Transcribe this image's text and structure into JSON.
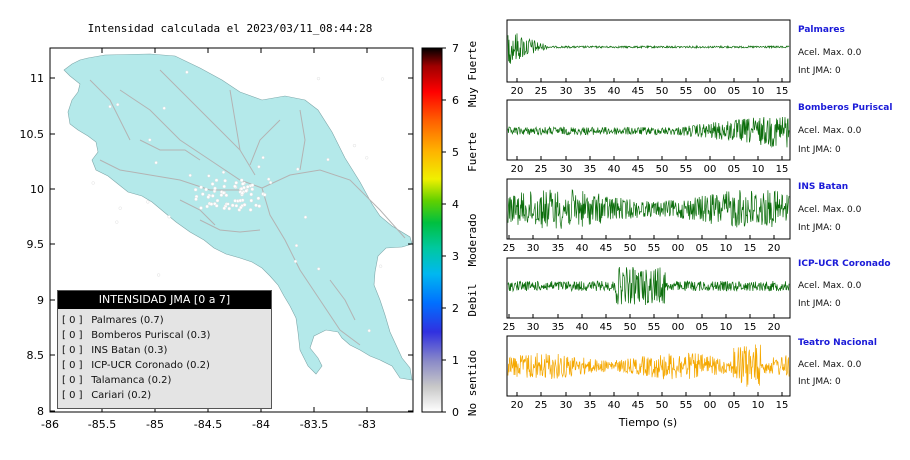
{
  "map": {
    "title": "Intensidad calculada el 2023/03/11_08:44:28",
    "x_ticks": [
      "-86",
      "-85.5",
      "-85",
      "-84.5",
      "-84",
      "-83.5",
      "-83"
    ],
    "y_ticks": [
      "11",
      "10.5",
      "10",
      "9.5",
      "9",
      "8.5",
      "8"
    ],
    "land_color": "#b4e9ea",
    "road_color": "#b3b3b3"
  },
  "colorbar": {
    "ticks": [
      "0",
      "1",
      "2",
      "3",
      "4",
      "5",
      "6",
      "7"
    ],
    "labels": [
      "No sentido",
      "Debil",
      "Moderado",
      "Fuerte",
      "Muy Fuerte"
    ]
  },
  "legend": {
    "title": "INTENSIDAD JMA [0 a 7]",
    "rows": [
      {
        "bracket": "[ 0 ]",
        "label": "Palmares (0.7)"
      },
      {
        "bracket": "[ 0 ]",
        "label": "Bomberos Puriscal (0.3)"
      },
      {
        "bracket": "[ 0 ]",
        "label": "INS Batan (0.3)"
      },
      {
        "bracket": "[ 0 ]",
        "label": "ICP-UCR Coronado (0.2)"
      },
      {
        "bracket": "[ 0 ]",
        "label": "Talamanca (0.2)"
      },
      {
        "bracket": "[ 0 ]",
        "label": "Cariari (0.2)"
      }
    ]
  },
  "stations": [
    {
      "name": "Palmares",
      "accel": "Acel. Max. 0.0",
      "jma": "Int JMA: 0",
      "color": "#0c6e0c",
      "ticks": [
        "20",
        "25",
        "30",
        "35",
        "40",
        "45",
        "50",
        "55",
        "00",
        "05",
        "10",
        "15"
      ]
    },
    {
      "name": "Bomberos Puriscal",
      "accel": "Acel. Max. 0.0",
      "jma": "Int JMA: 0",
      "color": "#0c6e0c",
      "ticks": [
        "20",
        "25",
        "30",
        "35",
        "40",
        "45",
        "50",
        "55",
        "00",
        "05",
        "10",
        "15"
      ]
    },
    {
      "name": "INS Batan",
      "accel": "Acel. Max. 0.0",
      "jma": "Int JMA: 0",
      "color": "#0c6e0c",
      "ticks": [
        "25",
        "30",
        "35",
        "40",
        "45",
        "50",
        "55",
        "00",
        "05",
        "10",
        "15",
        "20"
      ]
    },
    {
      "name": "ICP-UCR Coronado",
      "accel": "Acel. Max. 0.0",
      "jma": "Int JMA: 0",
      "color": "#0c6e0c",
      "ticks": [
        "25",
        "30",
        "35",
        "40",
        "45",
        "50",
        "55",
        "00",
        "05",
        "10",
        "15",
        "20"
      ]
    },
    {
      "name": "Teatro Nacional",
      "accel": "Acel. Max. 0.0",
      "jma": "Int JMA: 0",
      "color": "#f5a800",
      "ticks": [
        "20",
        "25",
        "30",
        "35",
        "40",
        "45",
        "50",
        "55",
        "00",
        "05",
        "10",
        "15"
      ]
    }
  ],
  "time_label": "Tiempo (s)",
  "chart_data": {
    "type": "heatmap",
    "title": "Intensidad calculada el 2023/03/11_08:44:28",
    "x_range": [
      -86,
      -82.6
    ],
    "y_range": [
      8,
      11.3
    ],
    "colorbar_range": [
      0,
      7
    ],
    "station_intensities": [
      {
        "name": "Palmares",
        "value": 0.7
      },
      {
        "name": "Bomberos Puriscal",
        "value": 0.3
      },
      {
        "name": "INS Batan",
        "value": 0.3
      },
      {
        "name": "ICP-UCR Coronado",
        "value": 0.2
      },
      {
        "name": "Talamanca",
        "value": 0.2
      },
      {
        "name": "Cariari",
        "value": 0.2
      }
    ],
    "waveform_max_accel": [
      0.0,
      0.0,
      0.0,
      0.0,
      0.0
    ],
    "waveform_jma": [
      0,
      0,
      0,
      0,
      0
    ]
  }
}
